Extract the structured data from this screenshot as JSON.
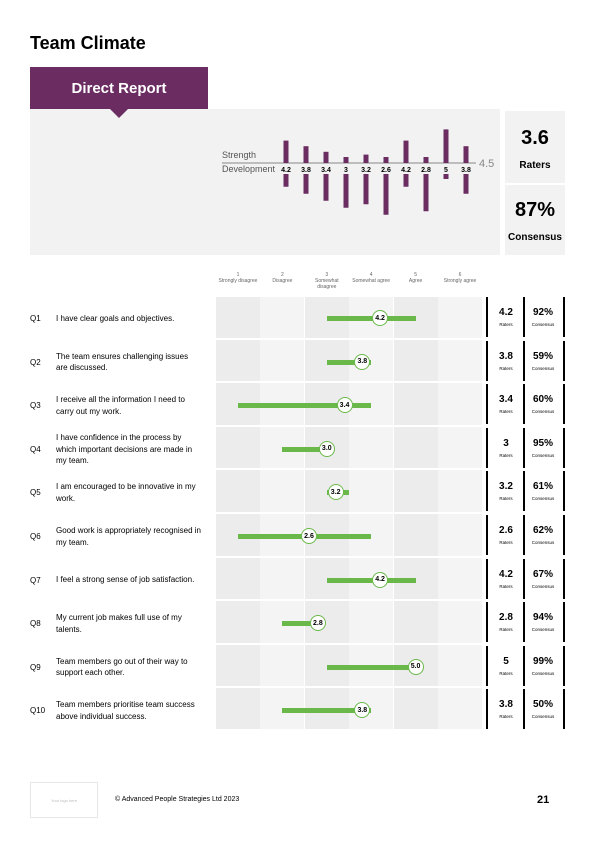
{
  "page_title": "Team Climate",
  "section_tab": "Direct Report",
  "summary": {
    "strength_label": "Strength",
    "development_label": "Development",
    "benchmark_label": "4.5",
    "raters_value": "3.6",
    "raters_label": "Raters",
    "consensus_value": "87%",
    "consensus_label": "Consensus"
  },
  "scale": [
    {
      "num": "1",
      "label": "Strongly disagree"
    },
    {
      "num": "2",
      "label": "Disagree"
    },
    {
      "num": "3",
      "label": "Somewhat disagree"
    },
    {
      "num": "4",
      "label": "Somewhat agree"
    },
    {
      "num": "5",
      "label": "Agree"
    },
    {
      "num": "6",
      "label": "Strongly agree"
    }
  ],
  "row_value_label": "Raters",
  "row_consensus_label": "Consensus",
  "questions": [
    {
      "id": "Q1",
      "text": "I have clear goals and objectives.",
      "min": 3,
      "max": 5,
      "mean": 4.2,
      "mean_label": "4.2",
      "raters": "4.2",
      "consensus": "92%"
    },
    {
      "id": "Q2",
      "text": "The team ensures challenging issues are discussed.",
      "min": 3,
      "max": 4,
      "mean": 3.8,
      "mean_label": "3.8",
      "raters": "3.8",
      "consensus": "59%"
    },
    {
      "id": "Q3",
      "text": "I receive all the information I need to carry out my work.",
      "min": 1,
      "max": 4,
      "mean": 3.4,
      "mean_label": "3.4",
      "raters": "3.4",
      "consensus": "60%"
    },
    {
      "id": "Q4",
      "text": "I have confidence in the process by which important decisions are made in my team.",
      "min": 2,
      "max": 3,
      "mean": 3.0,
      "mean_label": "3.0",
      "raters": "3",
      "consensus": "95%"
    },
    {
      "id": "Q5",
      "text": "I am encouraged to be innovative in my work.",
      "min": 3,
      "max": 3.5,
      "mean": 3.2,
      "mean_label": "3.2",
      "raters": "3.2",
      "consensus": "61%"
    },
    {
      "id": "Q6",
      "text": "Good work is appropriately recognised in my team.",
      "min": 1,
      "max": 4,
      "mean": 2.6,
      "mean_label": "2.6",
      "raters": "2.6",
      "consensus": "62%"
    },
    {
      "id": "Q7",
      "text": "I feel a strong sense of job satisfaction.",
      "min": 3,
      "max": 5,
      "mean": 4.2,
      "mean_label": "4.2",
      "raters": "4.2",
      "consensus": "67%"
    },
    {
      "id": "Q8",
      "text": "My current job makes full use of my talents.",
      "min": 2,
      "max": 2.8,
      "mean": 2.8,
      "mean_label": "2.8",
      "raters": "2.8",
      "consensus": "94%"
    },
    {
      "id": "Q9",
      "text": "Team members go out of their way to support each other.",
      "min": 3,
      "max": 5,
      "mean": 5.0,
      "mean_label": "5.0",
      "raters": "5",
      "consensus": "99%"
    },
    {
      "id": "Q10",
      "text": "Team members prioritise team success above individual success.",
      "min": 2,
      "max": 4,
      "mean": 3.8,
      "mean_label": "3.8",
      "raters": "3.8",
      "consensus": "50%"
    }
  ],
  "chart_data": [
    {
      "type": "bar",
      "description_role": "summary strength/development bars",
      "categories": [
        "Q1",
        "Q2",
        "Q3",
        "Q4",
        "Q5",
        "Q6",
        "Q7",
        "Q8",
        "Q9",
        "Q10"
      ],
      "series": [
        {
          "values": [
            4.2,
            3.8,
            3.4,
            3.0,
            3.2,
            2.6,
            4.2,
            2.8,
            5.0,
            3.8
          ],
          "labels": [
            "4.2",
            "3.8",
            "3.4",
            "3",
            "3.2",
            "2.6",
            "4.2",
            "2.8",
            "5",
            "3.8"
          ]
        }
      ],
      "reference_line": 4.5,
      "color": "#6b2c62"
    },
    {
      "type": "range",
      "categories": [
        "Q1",
        "Q2",
        "Q3",
        "Q4",
        "Q5",
        "Q6",
        "Q7",
        "Q8",
        "Q9",
        "Q10"
      ],
      "xlim": [
        1,
        6
      ],
      "tick_labels": [
        "Strongly disagree",
        "Disagree",
        "Somewhat disagree",
        "Somewhat agree",
        "Agree",
        "Strongly agree"
      ],
      "min": [
        3,
        3,
        1,
        2,
        3,
        1,
        3,
        2,
        3,
        2
      ],
      "max": [
        5,
        4,
        4,
        3,
        3.5,
        4,
        5,
        2.8,
        5,
        4
      ],
      "mean": [
        4.2,
        3.8,
        3.4,
        3.0,
        3.2,
        2.6,
        4.2,
        2.8,
        5.0,
        3.8
      ],
      "color": "#6ab84a"
    }
  ],
  "footer": {
    "logo_placeholder": "Your logo here",
    "copyright": "© Advanced People Strategies Ltd 2023",
    "page_number": "21"
  }
}
